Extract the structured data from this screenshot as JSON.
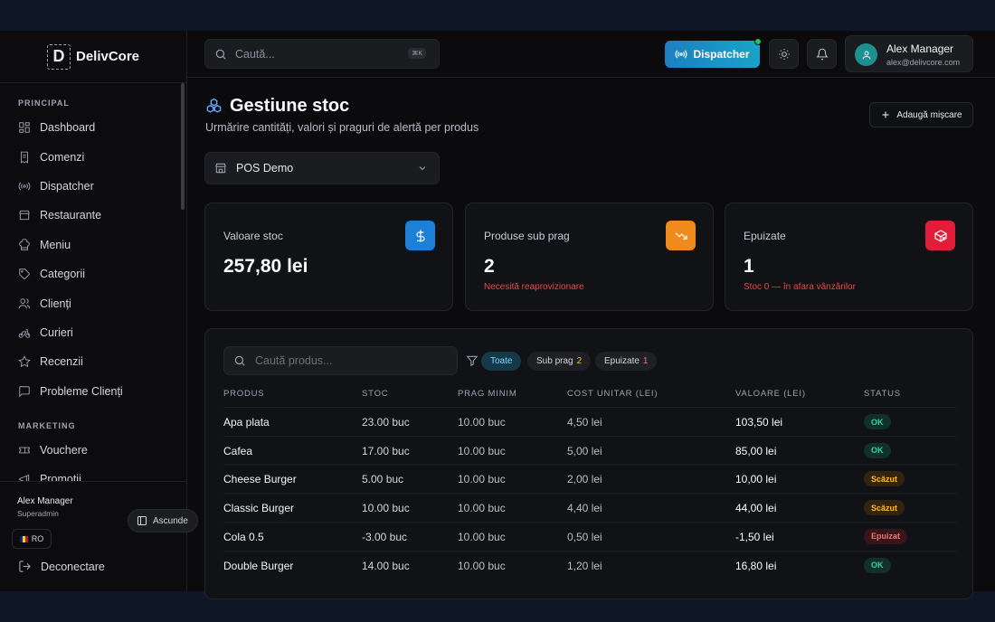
{
  "logo": {
    "mark": "D",
    "name": "DelivCore"
  },
  "sidebar": {
    "sections": [
      {
        "label": "PRINCIPAL",
        "items": [
          {
            "label": "Dashboard",
            "icon": "dashboard-icon"
          },
          {
            "label": "Comenzi",
            "icon": "orders-icon"
          },
          {
            "label": "Dispatcher",
            "icon": "broadcast-icon"
          },
          {
            "label": "Restaurante",
            "icon": "store-icon"
          },
          {
            "label": "Meniu",
            "icon": "chef-hat-icon"
          },
          {
            "label": "Categorii",
            "icon": "tag-icon"
          },
          {
            "label": "Clienți",
            "icon": "users-icon"
          },
          {
            "label": "Curieri",
            "icon": "bike-icon"
          },
          {
            "label": "Recenzii",
            "icon": "star-icon"
          },
          {
            "label": "Probleme Clienți",
            "icon": "message-icon"
          }
        ]
      },
      {
        "label": "MARKETING",
        "items": [
          {
            "label": "Vouchere",
            "icon": "ticket-icon"
          },
          {
            "label": "Promoții",
            "icon": "megaphone-icon"
          }
        ]
      }
    ],
    "user": {
      "name": "Alex Manager",
      "role": "Superadmin"
    },
    "hide_label": "Ascunde",
    "lang": "RO",
    "logout_label": "Deconectare"
  },
  "topbar": {
    "search_placeholder": "Caută...",
    "shortcut": "⌘K",
    "dispatcher_label": "Dispatcher",
    "profile": {
      "name": "Alex Manager",
      "email": "alex@delivcore.com"
    }
  },
  "page": {
    "title": "Gestiune stoc",
    "subtitle": "Urmărire cantități, valori și praguri de alertă per produs",
    "add_label": "Adaugă mișcare",
    "location": "POS Demo"
  },
  "cards": [
    {
      "label": "Valoare stoc",
      "value": "257,80 lei",
      "note": "",
      "color": "#1d7fd6",
      "icon": "dollar-icon"
    },
    {
      "label": "Produse sub prag",
      "value": "2",
      "note": "Necesită reaprovizionare",
      "color": "#f08a1c",
      "icon": "trend-down-icon"
    },
    {
      "label": "Epuizate",
      "value": "1",
      "note": "Stoc 0 — în afara vânzărilor",
      "color": "#e11d3a",
      "icon": "package-x-icon"
    }
  ],
  "table": {
    "search_placeholder": "Caută produs...",
    "filters": [
      {
        "label": "Toate",
        "count": ""
      },
      {
        "label": "Sub prag",
        "count": "2"
      },
      {
        "label": "Epuizate",
        "count": "1"
      }
    ],
    "columns": [
      "PRODUS",
      "STOC",
      "PRAG MINIM",
      "COST UNITAR (LEI)",
      "VALOARE (LEI)",
      "STATUS"
    ],
    "rows": [
      {
        "name": "Apa plata",
        "stock": "23.00 buc",
        "min": "10.00 buc",
        "cost": "4,50 lei",
        "value": "103,50 lei",
        "status": "OK",
        "kind": "ok"
      },
      {
        "name": "Cafea",
        "stock": "17.00 buc",
        "min": "10.00 buc",
        "cost": "5,00 lei",
        "value": "85,00 lei",
        "status": "OK",
        "kind": "ok"
      },
      {
        "name": "Cheese Burger",
        "stock": "5.00 buc",
        "min": "10.00 buc",
        "cost": "2,00 lei",
        "value": "10,00 lei",
        "status": "Scăzut",
        "kind": "low"
      },
      {
        "name": "Classic Burger",
        "stock": "10.00 buc",
        "min": "10.00 buc",
        "cost": "4,40 lei",
        "value": "44,00 lei",
        "status": "Scăzut",
        "kind": "low"
      },
      {
        "name": "Cola 0.5",
        "stock": "-3.00 buc",
        "min": "10.00 buc",
        "cost": "0,50 lei",
        "value": "-1,50 lei",
        "status": "Epuizat",
        "kind": "out"
      },
      {
        "name": "Double Burger",
        "stock": "14.00 buc",
        "min": "10.00 buc",
        "cost": "1,20 lei",
        "value": "16,80 lei",
        "status": "OK",
        "kind": "ok"
      }
    ]
  }
}
